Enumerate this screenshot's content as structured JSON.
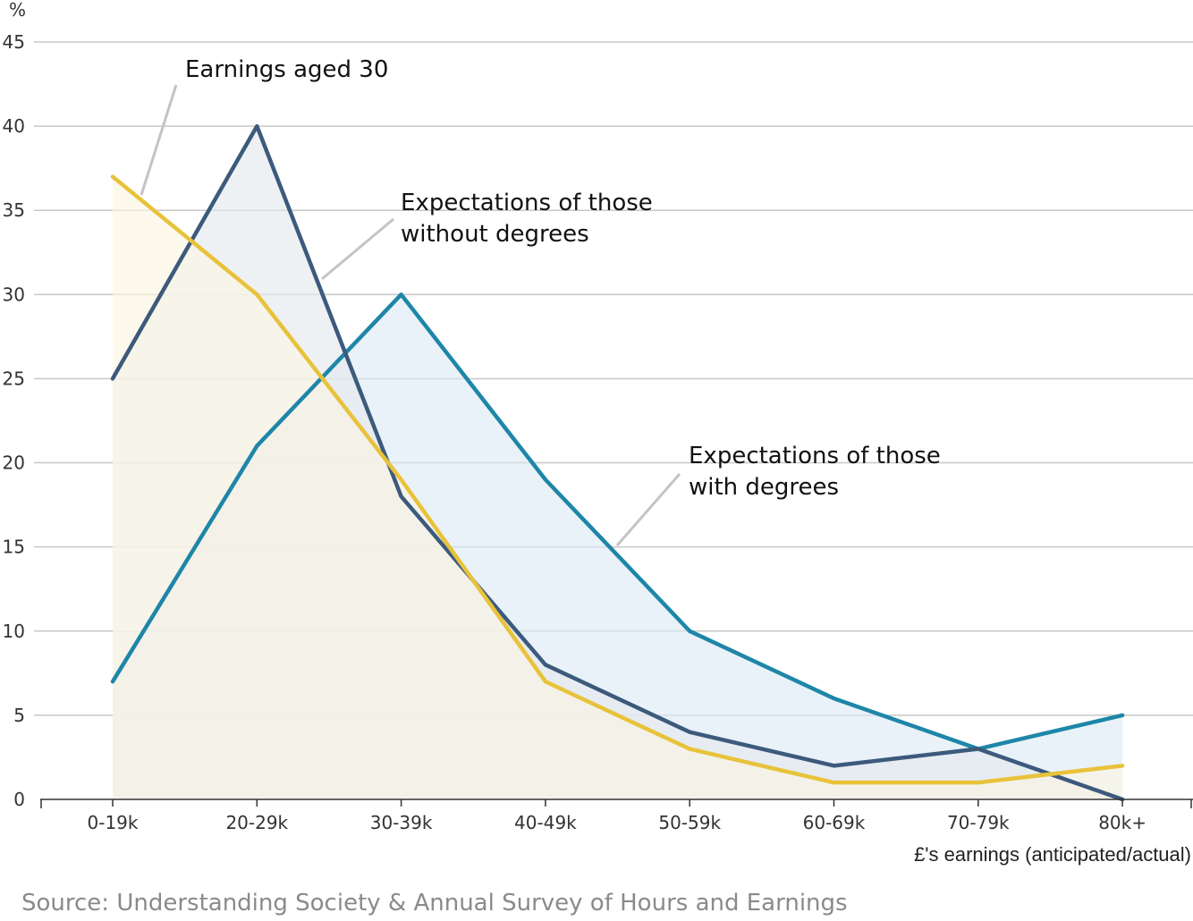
{
  "chart_data": {
    "type": "area",
    "categories": [
      "0-19k",
      "20-29k",
      "30-39k",
      "40-49k",
      "50-59k",
      "60-69k",
      "70-79k",
      "80k+"
    ],
    "series": [
      {
        "name": "Expectations of those with degrees",
        "color": "#1e86a8",
        "fill": "#dbeaf3",
        "values": [
          7,
          21,
          30,
          19,
          10,
          6,
          3,
          5
        ]
      },
      {
        "name": "Expectations of those without degrees",
        "color": "#3c5a7c",
        "fill": "#e3e8ee",
        "values": [
          25,
          40,
          18,
          8,
          4,
          2,
          3,
          0
        ]
      },
      {
        "name": "Earnings aged 30",
        "color": "#e8c23a",
        "fill": "#fbf6e2",
        "values": [
          37,
          30,
          19,
          7,
          3,
          1,
          1,
          2
        ]
      }
    ],
    "yticks": [
      0,
      5,
      10,
      15,
      20,
      25,
      30,
      35,
      40,
      45
    ],
    "ylim": [
      0,
      45
    ],
    "ylabel": "%",
    "xlabel": "£'s earnings (anticipated/actual)",
    "grid": true,
    "annotations": [
      {
        "text": [
          "Earnings aged 30"
        ],
        "series": "Earnings aged 30"
      },
      {
        "text": [
          "Expectations of those",
          "without degrees"
        ],
        "series": "Expectations of those without degrees"
      },
      {
        "text": [
          "Expectations of those",
          "with degrees"
        ],
        "series": "Expectations of those with degrees"
      }
    ]
  },
  "source": "Source: Understanding Society & Annual Survey of Hours and Earnings"
}
